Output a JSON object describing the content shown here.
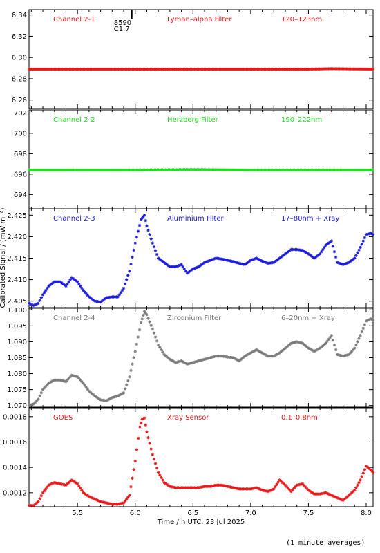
{
  "footnote": "(1 minute averages)",
  "chart_data": {
    "type": "scatter",
    "xlabel": "Time / h UTC, 23 Jul 2025",
    "ylabel": "Calibrated Signal / (mW m⁻²)",
    "xlim": [
      5.08,
      8.06
    ],
    "xticks": [
      5.5,
      6.0,
      6.5,
      7.0,
      7.5,
      8.0
    ],
    "xtick_labels": [
      "5.5",
      "6.0",
      "6.5",
      "7.0",
      "7.5",
      "8.0"
    ],
    "marker_annotation": {
      "x": 5.97,
      "labels": [
        "8590",
        "C1.7"
      ]
    },
    "panels": [
      {
        "name": "Channel 2-1",
        "filter": "Lyman–alpha Filter",
        "band": "120–123nm",
        "color": "#e8191a",
        "ylim": [
          6.252,
          6.345
        ],
        "yticks": [
          6.26,
          6.28,
          6.3,
          6.32,
          6.34
        ],
        "ytick_labels": [
          "6.26",
          "6.28",
          "6.30",
          "6.32",
          "6.34"
        ],
        "points": [
          [
            5.08,
            6.289
          ],
          [
            5.5,
            6.289
          ],
          [
            6.0,
            6.289
          ],
          [
            6.5,
            6.289
          ],
          [
            7.0,
            6.289
          ],
          [
            7.5,
            6.289
          ],
          [
            7.7,
            6.2895
          ],
          [
            8.06,
            6.289
          ]
        ]
      },
      {
        "name": "Channel 2-2",
        "filter": "Herzberg Filter",
        "band": "190–222nm",
        "color": "#1ee01e",
        "ylim": [
          692.6,
          702.3
        ],
        "yticks": [
          694,
          696,
          698,
          700,
          702
        ],
        "ytick_labels": [
          "694",
          "696",
          "698",
          "700",
          "702"
        ],
        "points": [
          [
            5.08,
            696.4
          ],
          [
            5.5,
            696.4
          ],
          [
            6.0,
            696.4
          ],
          [
            6.5,
            696.45
          ],
          [
            7.0,
            696.4
          ],
          [
            7.5,
            696.4
          ],
          [
            8.06,
            696.4
          ]
        ]
      },
      {
        "name": "Channel 2-3",
        "filter": "Aluminium Filter",
        "band": "17–80nm + Xray",
        "color": "#1a1adb",
        "ylim": [
          2.4035,
          2.4265
        ],
        "yticks": [
          2.405,
          2.41,
          2.415,
          2.42,
          2.425
        ],
        "ytick_labels": [
          "2.405",
          "2.410",
          "2.415",
          "2.420",
          "2.425"
        ],
        "points": [
          [
            5.08,
            2.4045
          ],
          [
            5.12,
            2.404
          ],
          [
            5.16,
            2.4045
          ],
          [
            5.2,
            2.4065
          ],
          [
            5.25,
            2.4085
          ],
          [
            5.3,
            2.4095
          ],
          [
            5.35,
            2.4095
          ],
          [
            5.4,
            2.4085
          ],
          [
            5.45,
            2.4105
          ],
          [
            5.5,
            2.4095
          ],
          [
            5.55,
            2.4075
          ],
          [
            5.6,
            2.406
          ],
          [
            5.65,
            2.405
          ],
          [
            5.7,
            2.4048
          ],
          [
            5.75,
            2.4058
          ],
          [
            5.8,
            2.406
          ],
          [
            5.85,
            2.406
          ],
          [
            5.9,
            2.408
          ],
          [
            5.95,
            2.412
          ],
          [
            6.0,
            2.4185
          ],
          [
            6.05,
            2.424
          ],
          [
            6.08,
            2.425
          ],
          [
            6.1,
            2.4225
          ],
          [
            6.15,
            2.4185
          ],
          [
            6.2,
            2.415
          ],
          [
            6.25,
            2.414
          ],
          [
            6.3,
            2.413
          ],
          [
            6.35,
            2.413
          ],
          [
            6.4,
            2.4135
          ],
          [
            6.45,
            2.4115
          ],
          [
            6.5,
            2.4125
          ],
          [
            6.55,
            2.413
          ],
          [
            6.6,
            2.414
          ],
          [
            6.65,
            2.4145
          ],
          [
            6.7,
            2.415
          ],
          [
            6.75,
            2.4148
          ],
          [
            6.8,
            2.4145
          ],
          [
            6.85,
            2.4142
          ],
          [
            6.9,
            2.4138
          ],
          [
            6.95,
            2.4135
          ],
          [
            7.0,
            2.4145
          ],
          [
            7.05,
            2.415
          ],
          [
            7.1,
            2.4143
          ],
          [
            7.15,
            2.4138
          ],
          [
            7.2,
            2.414
          ],
          [
            7.25,
            2.415
          ],
          [
            7.3,
            2.416
          ],
          [
            7.35,
            2.417
          ],
          [
            7.4,
            2.417
          ],
          [
            7.45,
            2.4168
          ],
          [
            7.5,
            2.416
          ],
          [
            7.55,
            2.415
          ],
          [
            7.6,
            2.416
          ],
          [
            7.65,
            2.418
          ],
          [
            7.7,
            2.419
          ],
          [
            7.75,
            2.414
          ],
          [
            7.8,
            2.4135
          ],
          [
            7.85,
            2.414
          ],
          [
            7.9,
            2.415
          ],
          [
            7.95,
            2.4175
          ],
          [
            8.0,
            2.4205
          ],
          [
            8.04,
            2.4208
          ],
          [
            8.06,
            2.4205
          ]
        ]
      },
      {
        "name": "Channel 2-4",
        "filter": "Zirconium Filter",
        "band": "6–20nm + Xray",
        "color": "#7a7a7a",
        "ylim": [
          1.0695,
          1.1005
        ],
        "yticks": [
          1.07,
          1.075,
          1.08,
          1.085,
          1.09,
          1.095,
          1.1
        ],
        "ytick_labels": [
          "1.070",
          "1.075",
          "1.080",
          "1.085",
          "1.090",
          "1.095",
          "1.100"
        ],
        "points": [
          [
            5.08,
            1.07
          ],
          [
            5.12,
            1.0705
          ],
          [
            5.16,
            1.072
          ],
          [
            5.2,
            1.075
          ],
          [
            5.25,
            1.077
          ],
          [
            5.3,
            1.078
          ],
          [
            5.35,
            1.078
          ],
          [
            5.4,
            1.0775
          ],
          [
            5.45,
            1.0795
          ],
          [
            5.5,
            1.079
          ],
          [
            5.55,
            1.077
          ],
          [
            5.6,
            1.0745
          ],
          [
            5.65,
            1.073
          ],
          [
            5.7,
            1.0718
          ],
          [
            5.75,
            1.0715
          ],
          [
            5.8,
            1.0725
          ],
          [
            5.85,
            1.073
          ],
          [
            5.9,
            1.074
          ],
          [
            5.95,
            1.079
          ],
          [
            6.0,
            1.087
          ],
          [
            6.05,
            1.096
          ],
          [
            6.08,
            1.0995
          ],
          [
            6.1,
            1.0985
          ],
          [
            6.15,
            1.094
          ],
          [
            6.2,
            1.089
          ],
          [
            6.25,
            1.086
          ],
          [
            6.3,
            1.0845
          ],
          [
            6.35,
            1.0835
          ],
          [
            6.4,
            1.084
          ],
          [
            6.45,
            1.083
          ],
          [
            6.5,
            1.0835
          ],
          [
            6.55,
            1.084
          ],
          [
            6.6,
            1.0845
          ],
          [
            6.65,
            1.085
          ],
          [
            6.7,
            1.0855
          ],
          [
            6.75,
            1.0855
          ],
          [
            6.8,
            1.0852
          ],
          [
            6.85,
            1.085
          ],
          [
            6.9,
            1.084
          ],
          [
            6.95,
            1.0855
          ],
          [
            7.0,
            1.0865
          ],
          [
            7.05,
            1.0875
          ],
          [
            7.1,
            1.0865
          ],
          [
            7.15,
            1.0855
          ],
          [
            7.2,
            1.0855
          ],
          [
            7.25,
            1.0865
          ],
          [
            7.3,
            1.088
          ],
          [
            7.35,
            1.0895
          ],
          [
            7.4,
            1.09
          ],
          [
            7.45,
            1.0895
          ],
          [
            7.5,
            1.088
          ],
          [
            7.55,
            1.087
          ],
          [
            7.6,
            1.088
          ],
          [
            7.65,
            1.0895
          ],
          [
            7.7,
            1.092
          ],
          [
            7.75,
            1.086
          ],
          [
            7.8,
            1.0855
          ],
          [
            7.85,
            1.086
          ],
          [
            7.9,
            1.088
          ],
          [
            7.95,
            1.092
          ],
          [
            8.0,
            1.0965
          ],
          [
            8.04,
            1.0972
          ],
          [
            8.06,
            1.0968
          ]
        ]
      },
      {
        "name": "GOES",
        "filter": "Xray Sensor",
        "band": "0.1–0.8nm",
        "color": "#e8191a",
        "ylim": [
          0.00109,
          0.00187
        ],
        "yticks": [
          0.0012,
          0.0014,
          0.0016,
          0.0018
        ],
        "ytick_labels": [
          "0.0012",
          "0.0014",
          "0.0016",
          "0.0018"
        ],
        "points": [
          [
            5.08,
            0.0011
          ],
          [
            5.12,
            0.0011
          ],
          [
            5.16,
            0.00113
          ],
          [
            5.2,
            0.0012
          ],
          [
            5.25,
            0.00126
          ],
          [
            5.3,
            0.00128
          ],
          [
            5.35,
            0.00127
          ],
          [
            5.4,
            0.00126
          ],
          [
            5.45,
            0.0013
          ],
          [
            5.5,
            0.00127
          ],
          [
            5.55,
            0.0012
          ],
          [
            5.6,
            0.00117
          ],
          [
            5.65,
            0.00115
          ],
          [
            5.7,
            0.00113
          ],
          [
            5.75,
            0.00112
          ],
          [
            5.8,
            0.00111
          ],
          [
            5.85,
            0.00111
          ],
          [
            5.9,
            0.00112
          ],
          [
            5.95,
            0.00118
          ],
          [
            6.0,
            0.00145
          ],
          [
            6.04,
            0.00172
          ],
          [
            6.06,
            0.00178
          ],
          [
            6.08,
            0.00179
          ],
          [
            6.1,
            0.00168
          ],
          [
            6.15,
            0.0015
          ],
          [
            6.2,
            0.00136
          ],
          [
            6.25,
            0.00128
          ],
          [
            6.3,
            0.00125
          ],
          [
            6.35,
            0.00124
          ],
          [
            6.4,
            0.00124
          ],
          [
            6.45,
            0.00124
          ],
          [
            6.5,
            0.00124
          ],
          [
            6.55,
            0.00124
          ],
          [
            6.6,
            0.00125
          ],
          [
            6.65,
            0.00125
          ],
          [
            6.7,
            0.00126
          ],
          [
            6.75,
            0.00126
          ],
          [
            6.8,
            0.00125
          ],
          [
            6.85,
            0.00124
          ],
          [
            6.9,
            0.00123
          ],
          [
            6.95,
            0.00123
          ],
          [
            7.0,
            0.00123
          ],
          [
            7.05,
            0.00124
          ],
          [
            7.1,
            0.00122
          ],
          [
            7.15,
            0.00121
          ],
          [
            7.2,
            0.00123
          ],
          [
            7.25,
            0.0013
          ],
          [
            7.3,
            0.00126
          ],
          [
            7.35,
            0.00121
          ],
          [
            7.4,
            0.00126
          ],
          [
            7.45,
            0.00127
          ],
          [
            7.5,
            0.00122
          ],
          [
            7.55,
            0.00119
          ],
          [
            7.6,
            0.00119
          ],
          [
            7.65,
            0.0012
          ],
          [
            7.7,
            0.00118
          ],
          [
            7.75,
            0.00116
          ],
          [
            7.8,
            0.00114
          ],
          [
            7.85,
            0.00118
          ],
          [
            7.9,
            0.00122
          ],
          [
            7.95,
            0.0013
          ],
          [
            8.0,
            0.00141
          ],
          [
            8.04,
            0.00138
          ],
          [
            8.06,
            0.00136
          ]
        ]
      }
    ]
  }
}
